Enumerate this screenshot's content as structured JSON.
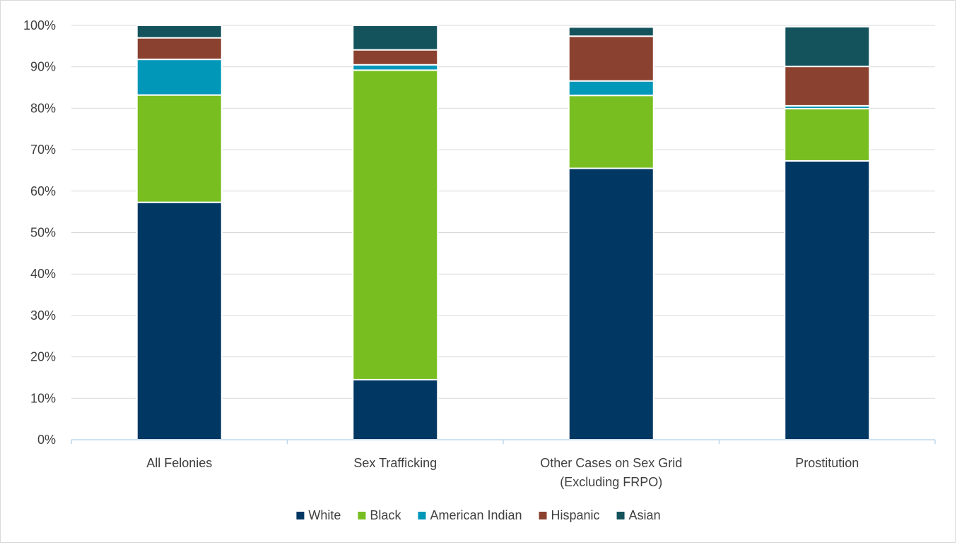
{
  "chart_data": {
    "type": "bar",
    "stacked": true,
    "percent_stacked": true,
    "title": "",
    "xlabel": "",
    "ylabel": "",
    "ylim": [
      0,
      100
    ],
    "y_ticks": [
      "0%",
      "10%",
      "20%",
      "30%",
      "40%",
      "50%",
      "60%",
      "70%",
      "80%",
      "90%",
      "100%"
    ],
    "grid": true,
    "legend_position": "bottom",
    "categories": [
      "All Felonies",
      "Sex Trafficking",
      "Other Cases on Sex Grid (Excluding FRPO)",
      "Prostitution"
    ],
    "category_label_lines": [
      [
        "All Felonies"
      ],
      [
        "Sex Trafficking"
      ],
      [
        "Other Cases on Sex Grid",
        "(Excluding FRPO)"
      ],
      [
        "Prostitution"
      ]
    ],
    "series": [
      {
        "name": "White",
        "color": "#003763",
        "values": [
          57.3,
          14.5,
          65.5,
          67.3
        ]
      },
      {
        "name": "Black",
        "color": "#78be21",
        "values": [
          25.9,
          74.7,
          17.6,
          12.6
        ]
      },
      {
        "name": "American Indian",
        "color": "#0097b9",
        "values": [
          8.6,
          1.3,
          3.5,
          0.7
        ]
      },
      {
        "name": "Hispanic",
        "color": "#8b412f",
        "values": [
          5.2,
          3.6,
          10.8,
          9.5
        ]
      },
      {
        "name": "Asian",
        "color": "#14535c",
        "values": [
          3.0,
          5.9,
          2.2,
          9.6
        ]
      }
    ]
  }
}
